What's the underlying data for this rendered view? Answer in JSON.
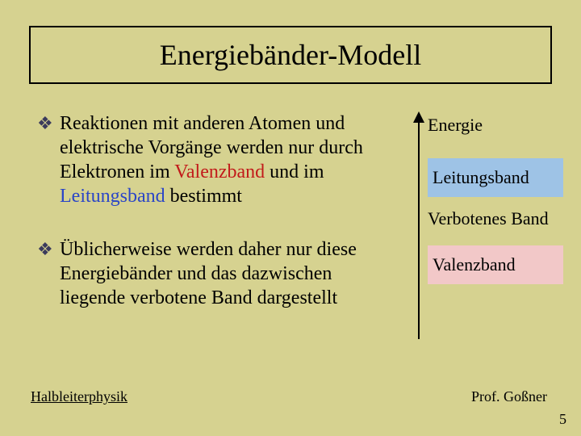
{
  "title": "Energiebänder-Modell",
  "bullets": [
    {
      "pre": "Reaktionen mit anderen Atomen und elektrische Vorgänge werden nur durch Elektronen im ",
      "hl1": "Valenzband",
      "mid": " und im ",
      "hl2": "Leitungsband",
      "post": " bestimmt",
      "hl1_color": "#c21a1a",
      "hl2_color": "#2a45c7"
    },
    {
      "pre": "Üblicherweise werden daher nur diese Energiebänder und das dazwischen liegende ",
      "hl1": "verbotene Band",
      "mid": "",
      "hl2": "",
      "post": " dargestellt",
      "hl1_color": "#000000",
      "hl2_color": "#000000"
    }
  ],
  "diagram": {
    "axis_label": "Energie",
    "band_leit": "Leitungsband",
    "band_leit_color": "#9ec3e6",
    "gap_label": "Verbotenes Band",
    "band_val": "Valenzband",
    "band_val_color": "#f2c8c8"
  },
  "footer": {
    "left": "Halbleiterphysik",
    "right": "Prof. Goßner",
    "page": "5"
  },
  "colors": {
    "background": "#d6d290",
    "bullet_glyph": "#3b3b5c"
  }
}
